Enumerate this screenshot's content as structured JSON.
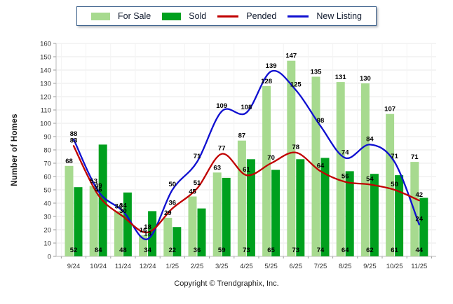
{
  "chart_data": {
    "type": "bar",
    "title": "",
    "xlabel": "",
    "ylabel": "Number of Homes",
    "ylim": [
      0,
      160
    ],
    "ytick_step": 10,
    "grid": true,
    "legend_position": "top-center",
    "categories": [
      "9/24",
      "10/24",
      "11/24",
      "12/24",
      "1/25",
      "2/25",
      "3/25",
      "4/25",
      "5/25",
      "6/25",
      "7/25",
      "8/25",
      "9/25",
      "10/25",
      "11/25"
    ],
    "series": [
      {
        "name": "For Sale",
        "type": "bar",
        "color": "#A7DA8F",
        "values": [
          68,
          53,
          34,
          16,
          29,
          45,
          63,
          87,
          128,
          147,
          135,
          131,
          130,
          107,
          71
        ]
      },
      {
        "name": "Sold",
        "type": "bar",
        "color": "#00A01E",
        "values": [
          52,
          84,
          48,
          34,
          22,
          36,
          59,
          73,
          65,
          73,
          74,
          64,
          62,
          61,
          44
        ]
      },
      {
        "name": "Pended",
        "type": "line",
        "color": "#C00000",
        "values": [
          83,
          46,
          30,
          18,
          36,
          51,
          77,
          61,
          70,
          78,
          64,
          56,
          54,
          50,
          42
        ]
      },
      {
        "name": "New Listing",
        "type": "line",
        "color": "#0F0FD0",
        "values": [
          88,
          49,
          34,
          13,
          50,
          71,
          109,
          108,
          139,
          125,
          98,
          74,
          84,
          71,
          24
        ]
      }
    ]
  },
  "footer": {
    "text": "Copyright © Trendgraphix, Inc."
  }
}
